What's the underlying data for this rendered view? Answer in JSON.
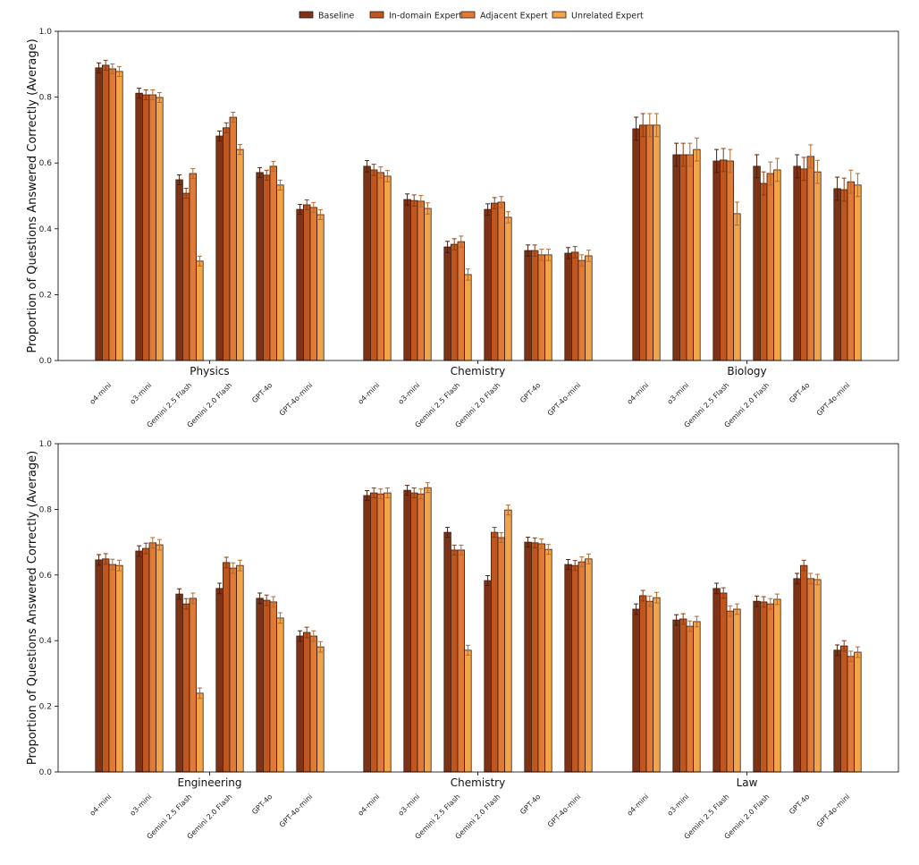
{
  "chart_data": {
    "type": "bar",
    "legend": {
      "placement": "top-center",
      "entries": [
        "Baseline",
        "In-domain Expert",
        "Adjacent Expert",
        "Unrelated Expert"
      ]
    },
    "colors": [
      "#7f3316",
      "#c0561f",
      "#e07a35",
      "#f2a44a"
    ],
    "models": [
      "o4-mini",
      "o3-mini",
      "Gemini 2.5 Flash",
      "Gemini 2.0 Flash",
      "GPT-4o",
      "GPT-4o-mini"
    ],
    "yticks": [
      "0.0",
      "0.2",
      "0.4",
      "0.6",
      "0.8",
      "1.0"
    ],
    "panels": [
      {
        "ylabel": "Proportion of Questions Answered Correctly (Average)",
        "ylim": [
          0,
          1.0
        ],
        "subjects": [
          {
            "name": "Physics",
            "err": 0.015,
            "values": [
              [
                0.889,
                0.897,
                0.886,
                0.878
              ],
              [
                0.812,
                0.807,
                0.807,
                0.799
              ],
              [
                0.549,
                0.508,
                0.568,
                0.302
              ],
              [
                0.682,
                0.707,
                0.739,
                0.641
              ],
              [
                0.571,
                0.563,
                0.59,
                0.533
              ],
              [
                0.459,
                0.473,
                0.465,
                0.443
              ]
            ]
          },
          {
            "name": "Chemistry",
            "err": 0.017,
            "values": [
              [
                0.59,
                0.579,
                0.571,
                0.56
              ],
              [
                0.489,
                0.486,
                0.484,
                0.462
              ],
              [
                0.345,
                0.353,
                0.361,
                0.261
              ],
              [
                0.459,
                0.478,
                0.481,
                0.435
              ],
              [
                0.334,
                0.334,
                0.321,
                0.321
              ],
              [
                0.326,
                0.329,
                0.304,
                0.318
              ]
            ]
          },
          {
            "name": "Biology",
            "err": 0.035,
            "values": [
              [
                0.704,
                0.715,
                0.715,
                0.715
              ],
              [
                0.625,
                0.625,
                0.625,
                0.641
              ],
              [
                0.606,
                0.609,
                0.606,
                0.446
              ],
              [
                0.59,
                0.538,
                0.568,
                0.579
              ],
              [
                0.59,
                0.582,
                0.62,
                0.573
              ],
              [
                0.522,
                0.519,
                0.543,
                0.533
              ]
            ]
          }
        ]
      },
      {
        "ylabel": "Proportion of Questions Answered Correctly (Average)",
        "ylim": [
          0,
          1.0
        ],
        "subjects": [
          {
            "name": "Engineering",
            "err": 0.016,
            "values": [
              [
                0.646,
                0.649,
                0.632,
                0.629
              ],
              [
                0.673,
                0.681,
                0.698,
                0.692
              ],
              [
                0.542,
                0.512,
                0.529,
                0.24
              ],
              [
                0.559,
                0.638,
                0.621,
                0.629
              ],
              [
                0.529,
                0.523,
                0.518,
                0.469
              ],
              [
                0.414,
                0.425,
                0.414,
                0.381
              ]
            ]
          },
          {
            "name": "Chemistry",
            "err": 0.015,
            "values": [
              [
                0.842,
                0.85,
                0.847,
                0.85
              ],
              [
                0.858,
                0.85,
                0.847,
                0.866
              ],
              [
                0.73,
                0.676,
                0.676,
                0.371
              ],
              [
                0.583,
                0.73,
                0.714,
                0.798
              ],
              [
                0.7,
                0.698,
                0.695,
                0.678
              ],
              [
                0.632,
                0.629,
                0.64,
                0.649
              ]
            ]
          },
          {
            "name": "Law",
            "err": 0.016,
            "values": [
              [
                0.496,
                0.537,
                0.52,
                0.531
              ],
              [
                0.463,
                0.466,
                0.444,
                0.458
              ],
              [
                0.559,
                0.545,
                0.49,
                0.496
              ],
              [
                0.52,
                0.518,
                0.512,
                0.526
              ],
              [
                0.589,
                0.629,
                0.589,
                0.586
              ],
              [
                0.371,
                0.384,
                0.352,
                0.365
              ]
            ]
          }
        ]
      }
    ]
  }
}
